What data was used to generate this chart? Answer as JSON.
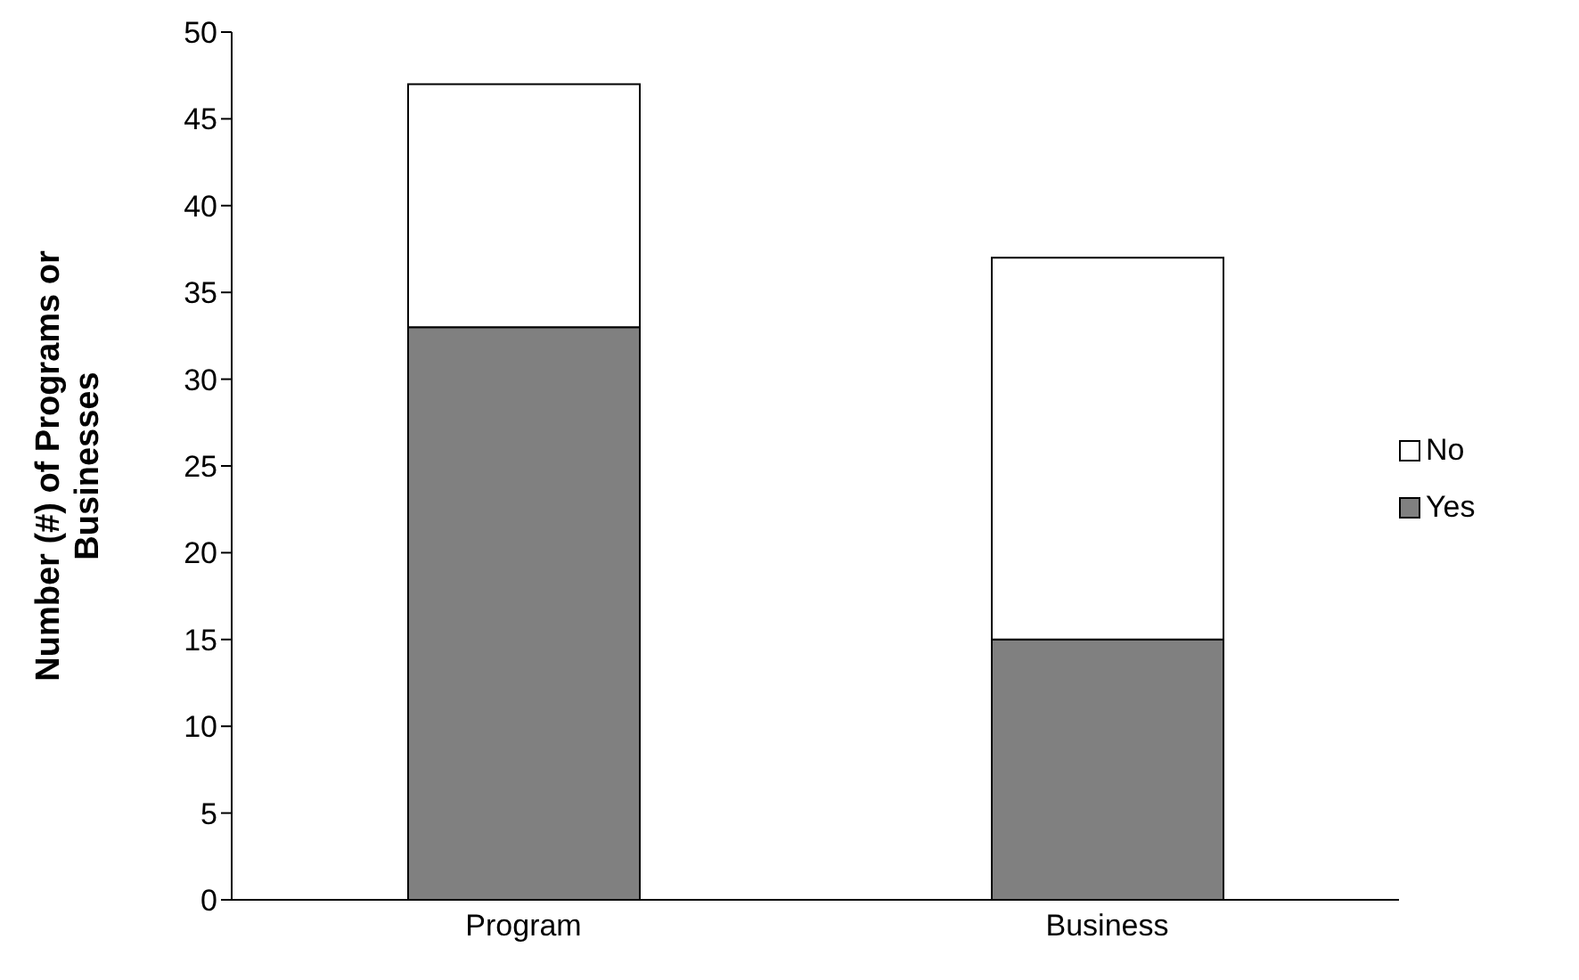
{
  "chart_data": {
    "type": "bar",
    "stacked": true,
    "ylabel": "Number (#) of Programs or Businesses",
    "categories": [
      "Program",
      "Business"
    ],
    "series": [
      {
        "name": "Yes",
        "color": "#808080",
        "values": [
          33,
          15
        ]
      },
      {
        "name": "No",
        "color": "#ffffff",
        "values": [
          14,
          22
        ]
      }
    ],
    "ylim": [
      0,
      50
    ],
    "yticks": [
      0,
      5,
      10,
      15,
      20,
      25,
      30,
      35,
      40,
      45,
      50
    ],
    "grid": false,
    "legend": "right"
  }
}
